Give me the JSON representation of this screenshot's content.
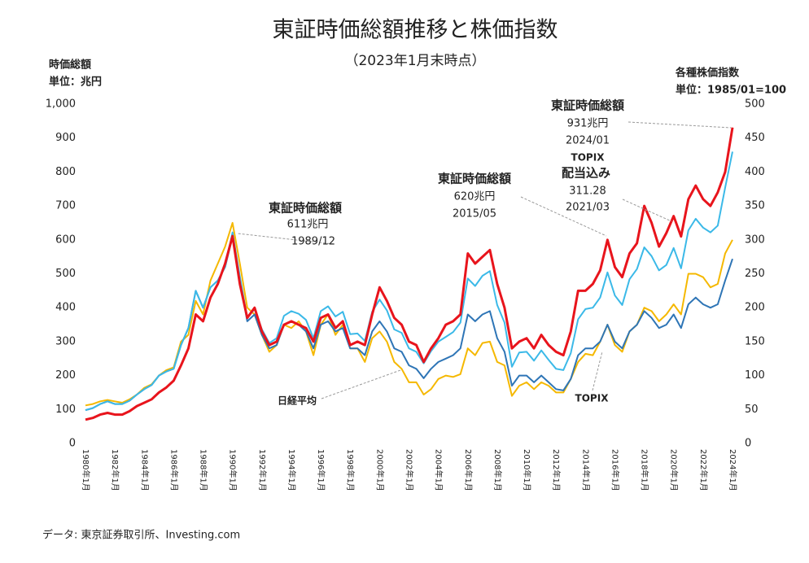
{
  "chart_data": {
    "type": "line",
    "title": "東証時価総額推移と株価指数",
    "subtitle": "（2023年1月末時点）",
    "y_axis_title": [
      "時価総額",
      "単位：兆円"
    ],
    "y2_axis_title": [
      "各種株価指数",
      "単位：1985/01=100"
    ],
    "source": "データ: 東京証券取引所、Investing.com",
    "categories": [
      "1980年1月",
      null,
      null,
      null,
      "1982年1月",
      null,
      null,
      null,
      "1984年1月",
      null,
      null,
      null,
      "1986年1月",
      null,
      null,
      null,
      "1988年1月",
      null,
      null,
      null,
      "1990年1月",
      null,
      null,
      null,
      "1992年1月",
      null,
      null,
      null,
      "1994年1月",
      null,
      null,
      null,
      "1996年1月",
      null,
      null,
      null,
      "1998年1月",
      null,
      null,
      null,
      "2000年1月",
      null,
      null,
      null,
      "2002年1月",
      null,
      null,
      null,
      "2004年1月",
      null,
      null,
      null,
      "2006年1月",
      null,
      null,
      null,
      "2008年1月",
      null,
      null,
      null,
      "2010年1月",
      null,
      null,
      null,
      "2012年1月",
      null,
      null,
      null,
      "2014年1月",
      null,
      null,
      null,
      "2016年1月",
      null,
      null,
      null,
      "2018年1月",
      null,
      null,
      null,
      "2020年1月",
      null,
      null,
      null,
      "2022年1月",
      null,
      null,
      null,
      "2024年1月"
    ],
    "ylim": [
      0,
      1000
    ],
    "yticks": [
      0,
      100,
      200,
      300,
      400,
      500,
      600,
      700,
      800,
      900,
      {
        "value": 1000,
        "label": "1,000"
      }
    ],
    "y2lim": [
      0,
      500
    ],
    "y2ticks": [
      0,
      50,
      100,
      150,
      200,
      250,
      300,
      350,
      400,
      450,
      500
    ],
    "grid": false,
    "series": [
      {
        "name": "日経平均",
        "color": "#f5b800",
        "axis": "y2",
        "values": [
          56,
          58,
          62,
          64,
          62,
          60,
          65,
          72,
          82,
          87,
          100,
          108,
          112,
          150,
          160,
          210,
          190,
          240,
          265,
          290,
          325,
          265,
          200,
          190,
          160,
          135,
          145,
          175,
          170,
          180,
          165,
          130,
          175,
          190,
          160,
          175,
          140,
          140,
          120,
          155,
          165,
          150,
          120,
          110,
          90,
          90,
          72,
          80,
          95,
          100,
          98,
          102,
          140,
          130,
          148,
          150,
          120,
          115,
          70,
          85,
          90,
          80,
          90,
          85,
          75,
          75,
          95,
          120,
          132,
          130,
          150,
          175,
          145,
          135,
          165,
          175,
          200,
          195,
          180,
          190,
          205,
          190,
          250,
          250,
          245,
          230,
          235,
          280,
          300
        ]
      },
      {
        "name": "TOPIX",
        "color": "#2e75b6",
        "axis": "y2",
        "values": [
          49,
          52,
          58,
          62,
          58,
          58,
          63,
          72,
          80,
          86,
          100,
          106,
          110,
          145,
          170,
          225,
          200,
          230,
          240,
          260,
          305,
          240,
          180,
          190,
          160,
          140,
          145,
          175,
          180,
          175,
          165,
          140,
          175,
          180,
          165,
          170,
          140,
          140,
          130,
          165,
          180,
          165,
          140,
          135,
          115,
          110,
          96,
          110,
          120,
          125,
          130,
          140,
          190,
          180,
          190,
          195,
          155,
          135,
          85,
          100,
          100,
          90,
          100,
          90,
          80,
          78,
          95,
          130,
          140,
          140,
          150,
          175,
          150,
          140,
          165,
          175,
          195,
          185,
          170,
          175,
          190,
          170,
          205,
          215,
          205,
          200,
          205,
          240,
          272
        ]
      },
      {
        "name": "TOPIX配当込み",
        "color": "#3bb9e8",
        "axis": "y2",
        "values": [
          49,
          52,
          58,
          62,
          58,
          58,
          63,
          72,
          80,
          86,
          100,
          106,
          110,
          145,
          170,
          225,
          200,
          230,
          240,
          260,
          311,
          246,
          185,
          198,
          168,
          148,
          155,
          188,
          195,
          191,
          182,
          155,
          195,
          202,
          187,
          194,
          161,
          162,
          151,
          194,
          212,
          196,
          168,
          163,
          140,
          135,
          118,
          136,
          150,
          157,
          164,
          178,
          243,
          232,
          247,
          254,
          204,
          178,
          113,
          134,
          135,
          122,
          137,
          123,
          110,
          108,
          133,
          183,
          198,
          200,
          215,
          252,
          218,
          204,
          242,
          257,
          289,
          276,
          255,
          263,
          288,
          258,
          314,
          331,
          318,
          311,
          321,
          377,
          430
        ]
      },
      {
        "name": "東証時価総額",
        "color": "#e8141c",
        "axis": "y",
        "values": [
          70,
          75,
          85,
          90,
          85,
          85,
          95,
          110,
          120,
          130,
          150,
          165,
          185,
          230,
          280,
          380,
          360,
          430,
          470,
          530,
          611,
          470,
          370,
          400,
          330,
          290,
          300,
          350,
          360,
          350,
          340,
          300,
          370,
          380,
          340,
          360,
          290,
          300,
          290,
          380,
          460,
          420,
          370,
          350,
          300,
          290,
          240,
          280,
          310,
          350,
          360,
          380,
          560,
          530,
          550,
          570,
          470,
          400,
          280,
          300,
          310,
          280,
          320,
          290,
          270,
          260,
          330,
          450,
          450,
          470,
          510,
          600,
          520,
          490,
          560,
          590,
          700,
          650,
          580,
          620,
          670,
          610,
          720,
          760,
          720,
          700,
          740,
          800,
          931
        ]
      }
    ],
    "annotations": [
      {
        "text": "東証時価総額",
        "color": "#d9141c"
      },
      {
        "text": "611兆円",
        "color": "#333333"
      },
      {
        "text": "1989/12",
        "color": "#333333"
      },
      {
        "text": "東証時価総額",
        "color": "#d9141c"
      },
      {
        "text": "620兆円",
        "color": "#333333"
      },
      {
        "text": "2015/05",
        "color": "#333333"
      },
      {
        "text": "東証時価総額",
        "color": "#d9141c"
      },
      {
        "text": "931兆円",
        "color": "#333333"
      },
      {
        "text": "2024/01",
        "color": "#333333"
      },
      {
        "text": "TOPIX",
        "color": "#1fa8e0"
      },
      {
        "text": "配当込み",
        "color": "#1fa8e0"
      },
      {
        "text": "311.28",
        "color": "#333333"
      },
      {
        "text": "2021/03",
        "color": "#333333"
      },
      {
        "text": "日経平均",
        "color": "#e8a800"
      },
      {
        "text": "TOPIX",
        "color": "#2e75b6"
      }
    ]
  }
}
